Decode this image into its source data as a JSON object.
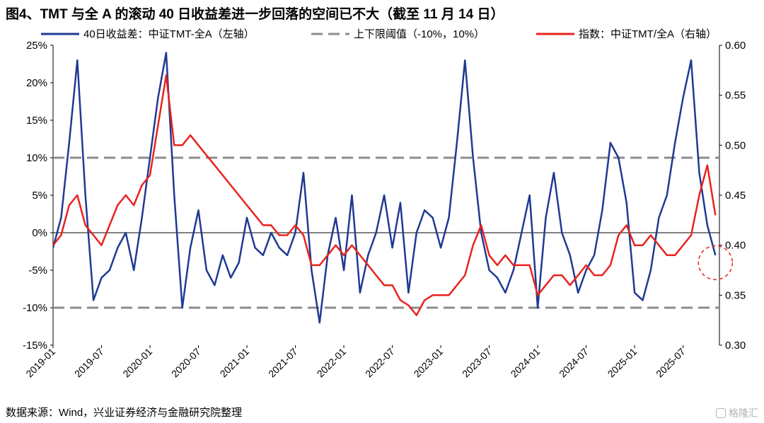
{
  "title": "图4、TMT 与全 A 的滚动 40 日收益差进一步回落的空间已不大（截至 11 月 14 日）",
  "source": "数据来源：Wind，兴业证券经济与金融研究院整理",
  "watermark": "格隆汇",
  "chart_data": {
    "type": "line",
    "legend_placement": "top",
    "colors": {
      "spread": "#1f3a93",
      "threshold": "#8c8c8c",
      "index": "#e8231e"
    },
    "x_ticks": [
      "2019-01",
      "2019-07",
      "2020-01",
      "2020-07",
      "2021-01",
      "2021-07",
      "2022-01",
      "2022-07",
      "2023-01",
      "2023-07",
      "2024-01",
      "2024-07",
      "2025-01",
      "2025-07"
    ],
    "x_range": [
      "2019-01",
      "2025-11"
    ],
    "y_left": {
      "ylim": [
        -15,
        25
      ],
      "ticks": [
        "-15%",
        "-10%",
        "-5%",
        "0%",
        "5%",
        "10%",
        "15%",
        "20%",
        "25%"
      ]
    },
    "y_right": {
      "ylim": [
        0.3,
        0.6
      ],
      "ticks": [
        "0.30",
        "0.35",
        "0.40",
        "0.45",
        "0.50",
        "0.55",
        "0.60"
      ]
    },
    "series": [
      {
        "name": "40日收益差：中证TMT-全A（左轴）",
        "axis": "left",
        "style": "solid",
        "x": [
          "2019-01",
          "2019-02",
          "2019-03",
          "2019-04",
          "2019-05",
          "2019-06",
          "2019-07",
          "2019-08",
          "2019-09",
          "2019-10",
          "2019-11",
          "2019-12",
          "2020-01",
          "2020-02",
          "2020-03",
          "2020-04",
          "2020-05",
          "2020-06",
          "2020-07",
          "2020-08",
          "2020-09",
          "2020-10",
          "2020-11",
          "2020-12",
          "2021-01",
          "2021-02",
          "2021-03",
          "2021-04",
          "2021-05",
          "2021-06",
          "2021-07",
          "2021-08",
          "2021-09",
          "2021-10",
          "2021-11",
          "2021-12",
          "2022-01",
          "2022-02",
          "2022-03",
          "2022-04",
          "2022-05",
          "2022-06",
          "2022-07",
          "2022-08",
          "2022-09",
          "2022-10",
          "2022-11",
          "2022-12",
          "2023-01",
          "2023-02",
          "2023-03",
          "2023-04",
          "2023-05",
          "2023-06",
          "2023-07",
          "2023-08",
          "2023-09",
          "2023-10",
          "2023-11",
          "2023-12",
          "2024-01",
          "2024-02",
          "2024-03",
          "2024-04",
          "2024-05",
          "2024-06",
          "2024-07",
          "2024-08",
          "2024-09",
          "2024-10",
          "2024-11",
          "2024-12",
          "2025-01",
          "2025-02",
          "2025-03",
          "2025-04",
          "2025-05",
          "2025-06",
          "2025-07",
          "2025-08",
          "2025-09",
          "2025-10",
          "2025-11"
        ],
        "values": [
          -2,
          2,
          12,
          23,
          5,
          -9,
          -6,
          -5,
          -2,
          0,
          -5,
          2,
          10,
          18,
          24,
          5,
          -10,
          -2,
          3,
          -5,
          -7,
          -3,
          -6,
          -4,
          2,
          -2,
          -3,
          0,
          -2,
          -3,
          0,
          8,
          -5,
          -12,
          -3,
          2,
          -5,
          5,
          -8,
          -3,
          0,
          5,
          -2,
          4,
          -8,
          0,
          3,
          2,
          -2,
          2,
          12,
          23,
          10,
          0,
          -5,
          -6,
          -8,
          -5,
          0,
          5,
          -10,
          2,
          8,
          0,
          -3,
          -8,
          -5,
          -3,
          3,
          12,
          10,
          4,
          -8,
          -9,
          -5,
          2,
          5,
          12,
          18,
          23,
          8,
          1,
          -3
        ]
      },
      {
        "name": "上下限阈值（-10%，10%）",
        "axis": "left",
        "style": "dashed",
        "levels": [
          -10,
          10
        ]
      },
      {
        "name": "指数：中证TMT/全A（右轴）",
        "axis": "right",
        "style": "solid",
        "x": [
          "2019-01",
          "2019-02",
          "2019-03",
          "2019-04",
          "2019-05",
          "2019-06",
          "2019-07",
          "2019-08",
          "2019-09",
          "2019-10",
          "2019-11",
          "2019-12",
          "2020-01",
          "2020-02",
          "2020-03",
          "2020-04",
          "2020-05",
          "2020-06",
          "2020-07",
          "2020-08",
          "2020-09",
          "2020-10",
          "2020-11",
          "2020-12",
          "2021-01",
          "2021-02",
          "2021-03",
          "2021-04",
          "2021-05",
          "2021-06",
          "2021-07",
          "2021-08",
          "2021-09",
          "2021-10",
          "2021-11",
          "2021-12",
          "2022-01",
          "2022-02",
          "2022-03",
          "2022-04",
          "2022-05",
          "2022-06",
          "2022-07",
          "2022-08",
          "2022-09",
          "2022-10",
          "2022-11",
          "2022-12",
          "2023-01",
          "2023-02",
          "2023-03",
          "2023-04",
          "2023-05",
          "2023-06",
          "2023-07",
          "2023-08",
          "2023-09",
          "2023-10",
          "2023-11",
          "2023-12",
          "2024-01",
          "2024-02",
          "2024-03",
          "2024-04",
          "2024-05",
          "2024-06",
          "2024-07",
          "2024-08",
          "2024-09",
          "2024-10",
          "2024-11",
          "2024-12",
          "2025-01",
          "2025-02",
          "2025-03",
          "2025-04",
          "2025-05",
          "2025-06",
          "2025-07",
          "2025-08",
          "2025-09",
          "2025-10",
          "2025-11"
        ],
        "values": [
          0.4,
          0.41,
          0.44,
          0.45,
          0.42,
          0.41,
          0.4,
          0.42,
          0.44,
          0.45,
          0.44,
          0.46,
          0.47,
          0.52,
          0.57,
          0.5,
          0.5,
          0.51,
          0.5,
          0.49,
          0.48,
          0.47,
          0.46,
          0.45,
          0.44,
          0.43,
          0.42,
          0.42,
          0.41,
          0.41,
          0.42,
          0.41,
          0.38,
          0.38,
          0.39,
          0.4,
          0.39,
          0.4,
          0.39,
          0.38,
          0.37,
          0.36,
          0.36,
          0.345,
          0.34,
          0.33,
          0.345,
          0.35,
          0.35,
          0.35,
          0.36,
          0.37,
          0.4,
          0.42,
          0.39,
          0.38,
          0.39,
          0.38,
          0.38,
          0.38,
          0.35,
          0.36,
          0.37,
          0.37,
          0.36,
          0.37,
          0.38,
          0.37,
          0.37,
          0.38,
          0.41,
          0.42,
          0.4,
          0.4,
          0.41,
          0.4,
          0.39,
          0.39,
          0.4,
          0.41,
          0.45,
          0.48,
          0.43
        ]
      }
    ],
    "annotations": [
      {
        "type": "circle",
        "style": "dashed",
        "color": "#e8231e",
        "x": "2025-11",
        "y_left": -4
      }
    ]
  }
}
